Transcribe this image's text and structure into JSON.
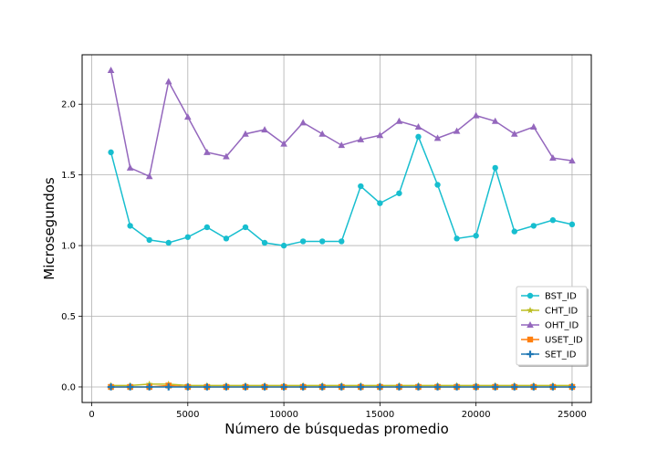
{
  "chart_data": {
    "type": "line",
    "title": "",
    "xlabel": "Número de búsquedas promedio",
    "ylabel": "Microsegundos",
    "xlim": [
      -500,
      26000
    ],
    "ylim": [
      -0.11,
      2.35
    ],
    "xticks": [
      0,
      5000,
      10000,
      15000,
      20000,
      25000
    ],
    "yticks": [
      0.0,
      0.5,
      1.0,
      1.5,
      2.0
    ],
    "grid": true,
    "legend_position": "lower-right",
    "x": [
      1000,
      2000,
      3000,
      4000,
      5000,
      6000,
      7000,
      8000,
      9000,
      10000,
      11000,
      12000,
      13000,
      14000,
      15000,
      16000,
      17000,
      18000,
      19000,
      20000,
      21000,
      22000,
      23000,
      24000,
      25000
    ],
    "series": [
      {
        "name": "BST_ID",
        "color": "#17becf",
        "marker": "circle",
        "values": [
          1.66,
          1.14,
          1.04,
          1.02,
          1.06,
          1.13,
          1.05,
          1.13,
          1.02,
          1.0,
          1.03,
          1.03,
          1.03,
          1.42,
          1.3,
          1.37,
          1.77,
          1.43,
          1.05,
          1.07,
          1.55,
          1.1,
          1.14,
          1.18,
          1.15
        ]
      },
      {
        "name": "CHT_ID",
        "color": "#bcbd22",
        "marker": "star",
        "values": [
          0.01,
          0.01,
          0.02,
          0.02,
          0.01,
          0.01,
          0.01,
          0.01,
          0.01,
          0.01,
          0.01,
          0.01,
          0.01,
          0.01,
          0.01,
          0.01,
          0.01,
          0.01,
          0.01,
          0.01,
          0.01,
          0.01,
          0.01,
          0.01,
          0.01
        ]
      },
      {
        "name": "OHT_ID",
        "color": "#9467bd",
        "marker": "triangle",
        "values": [
          2.24,
          1.55,
          1.49,
          2.16,
          1.91,
          1.66,
          1.63,
          1.79,
          1.82,
          1.72,
          1.87,
          1.79,
          1.71,
          1.75,
          1.78,
          1.88,
          1.84,
          1.76,
          1.81,
          1.92,
          1.88,
          1.79,
          1.84,
          1.62,
          1.6
        ]
      },
      {
        "name": "USET_ID",
        "color": "#ff7f0e",
        "marker": "square",
        "values": [
          0.0,
          0.0,
          0.0,
          0.01,
          0.0,
          0.0,
          0.0,
          0.0,
          0.0,
          0.0,
          0.0,
          0.0,
          0.0,
          0.0,
          0.0,
          0.0,
          0.0,
          0.0,
          0.0,
          0.0,
          0.0,
          0.0,
          0.0,
          0.0,
          0.0
        ]
      },
      {
        "name": "SET_ID",
        "color": "#1f77b4",
        "marker": "plus",
        "values": [
          0.0,
          0.0,
          0.0,
          0.0,
          0.0,
          0.0,
          0.0,
          0.0,
          0.0,
          0.0,
          0.0,
          0.0,
          0.0,
          0.0,
          0.0,
          0.0,
          0.0,
          0.0,
          0.0,
          0.0,
          0.0,
          0.0,
          0.0,
          0.0,
          0.0
        ]
      }
    ]
  }
}
